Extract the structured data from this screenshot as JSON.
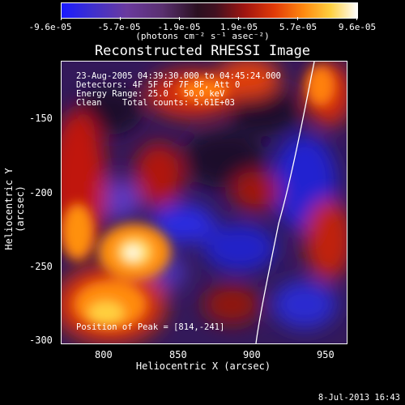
{
  "colorbar": {
    "ticks": [
      "-9.6e-05",
      "-5.7e-05",
      "-1.9e-05",
      "1.9e-05",
      "5.7e-05",
      "9.6e-05"
    ],
    "units": "(photons cm⁻² s⁻¹ asec⁻²)"
  },
  "title": "Reconstructed RHESSI Image",
  "annotations": {
    "time_range": "23-Aug-2005 04:39:30.000 to 04:45:24.000",
    "detectors": "Detectors: 4F 5F 6F 7F 8F, Att 0",
    "energy": "Energy Range: 25.0 - 50.0 keV",
    "clean": "Clean    Total counts: 5.61E+03",
    "peak": "Position of Peak = [814,-241]"
  },
  "axes": {
    "xlabel": "Heliocentric X (arcsec)",
    "ylabel": "Heliocentric Y (arcsec)",
    "x_ticks": [
      "800",
      "850",
      "900",
      "950"
    ],
    "y_ticks": [
      "-150",
      "-200",
      "-250",
      "-300"
    ],
    "x_range": [
      767,
      961
    ],
    "y_range": [
      -303,
      -110
    ]
  },
  "footer": "8-Jul-2013 16:43",
  "colors": {
    "background": "#000000",
    "limb": "#ffffff",
    "negative_blue": "#2a2aff",
    "mid_purple": "#5a2e9a",
    "hot_red": "#d02010",
    "hot_yellow": "#ffd040",
    "peak_white": "#ffffff"
  }
}
